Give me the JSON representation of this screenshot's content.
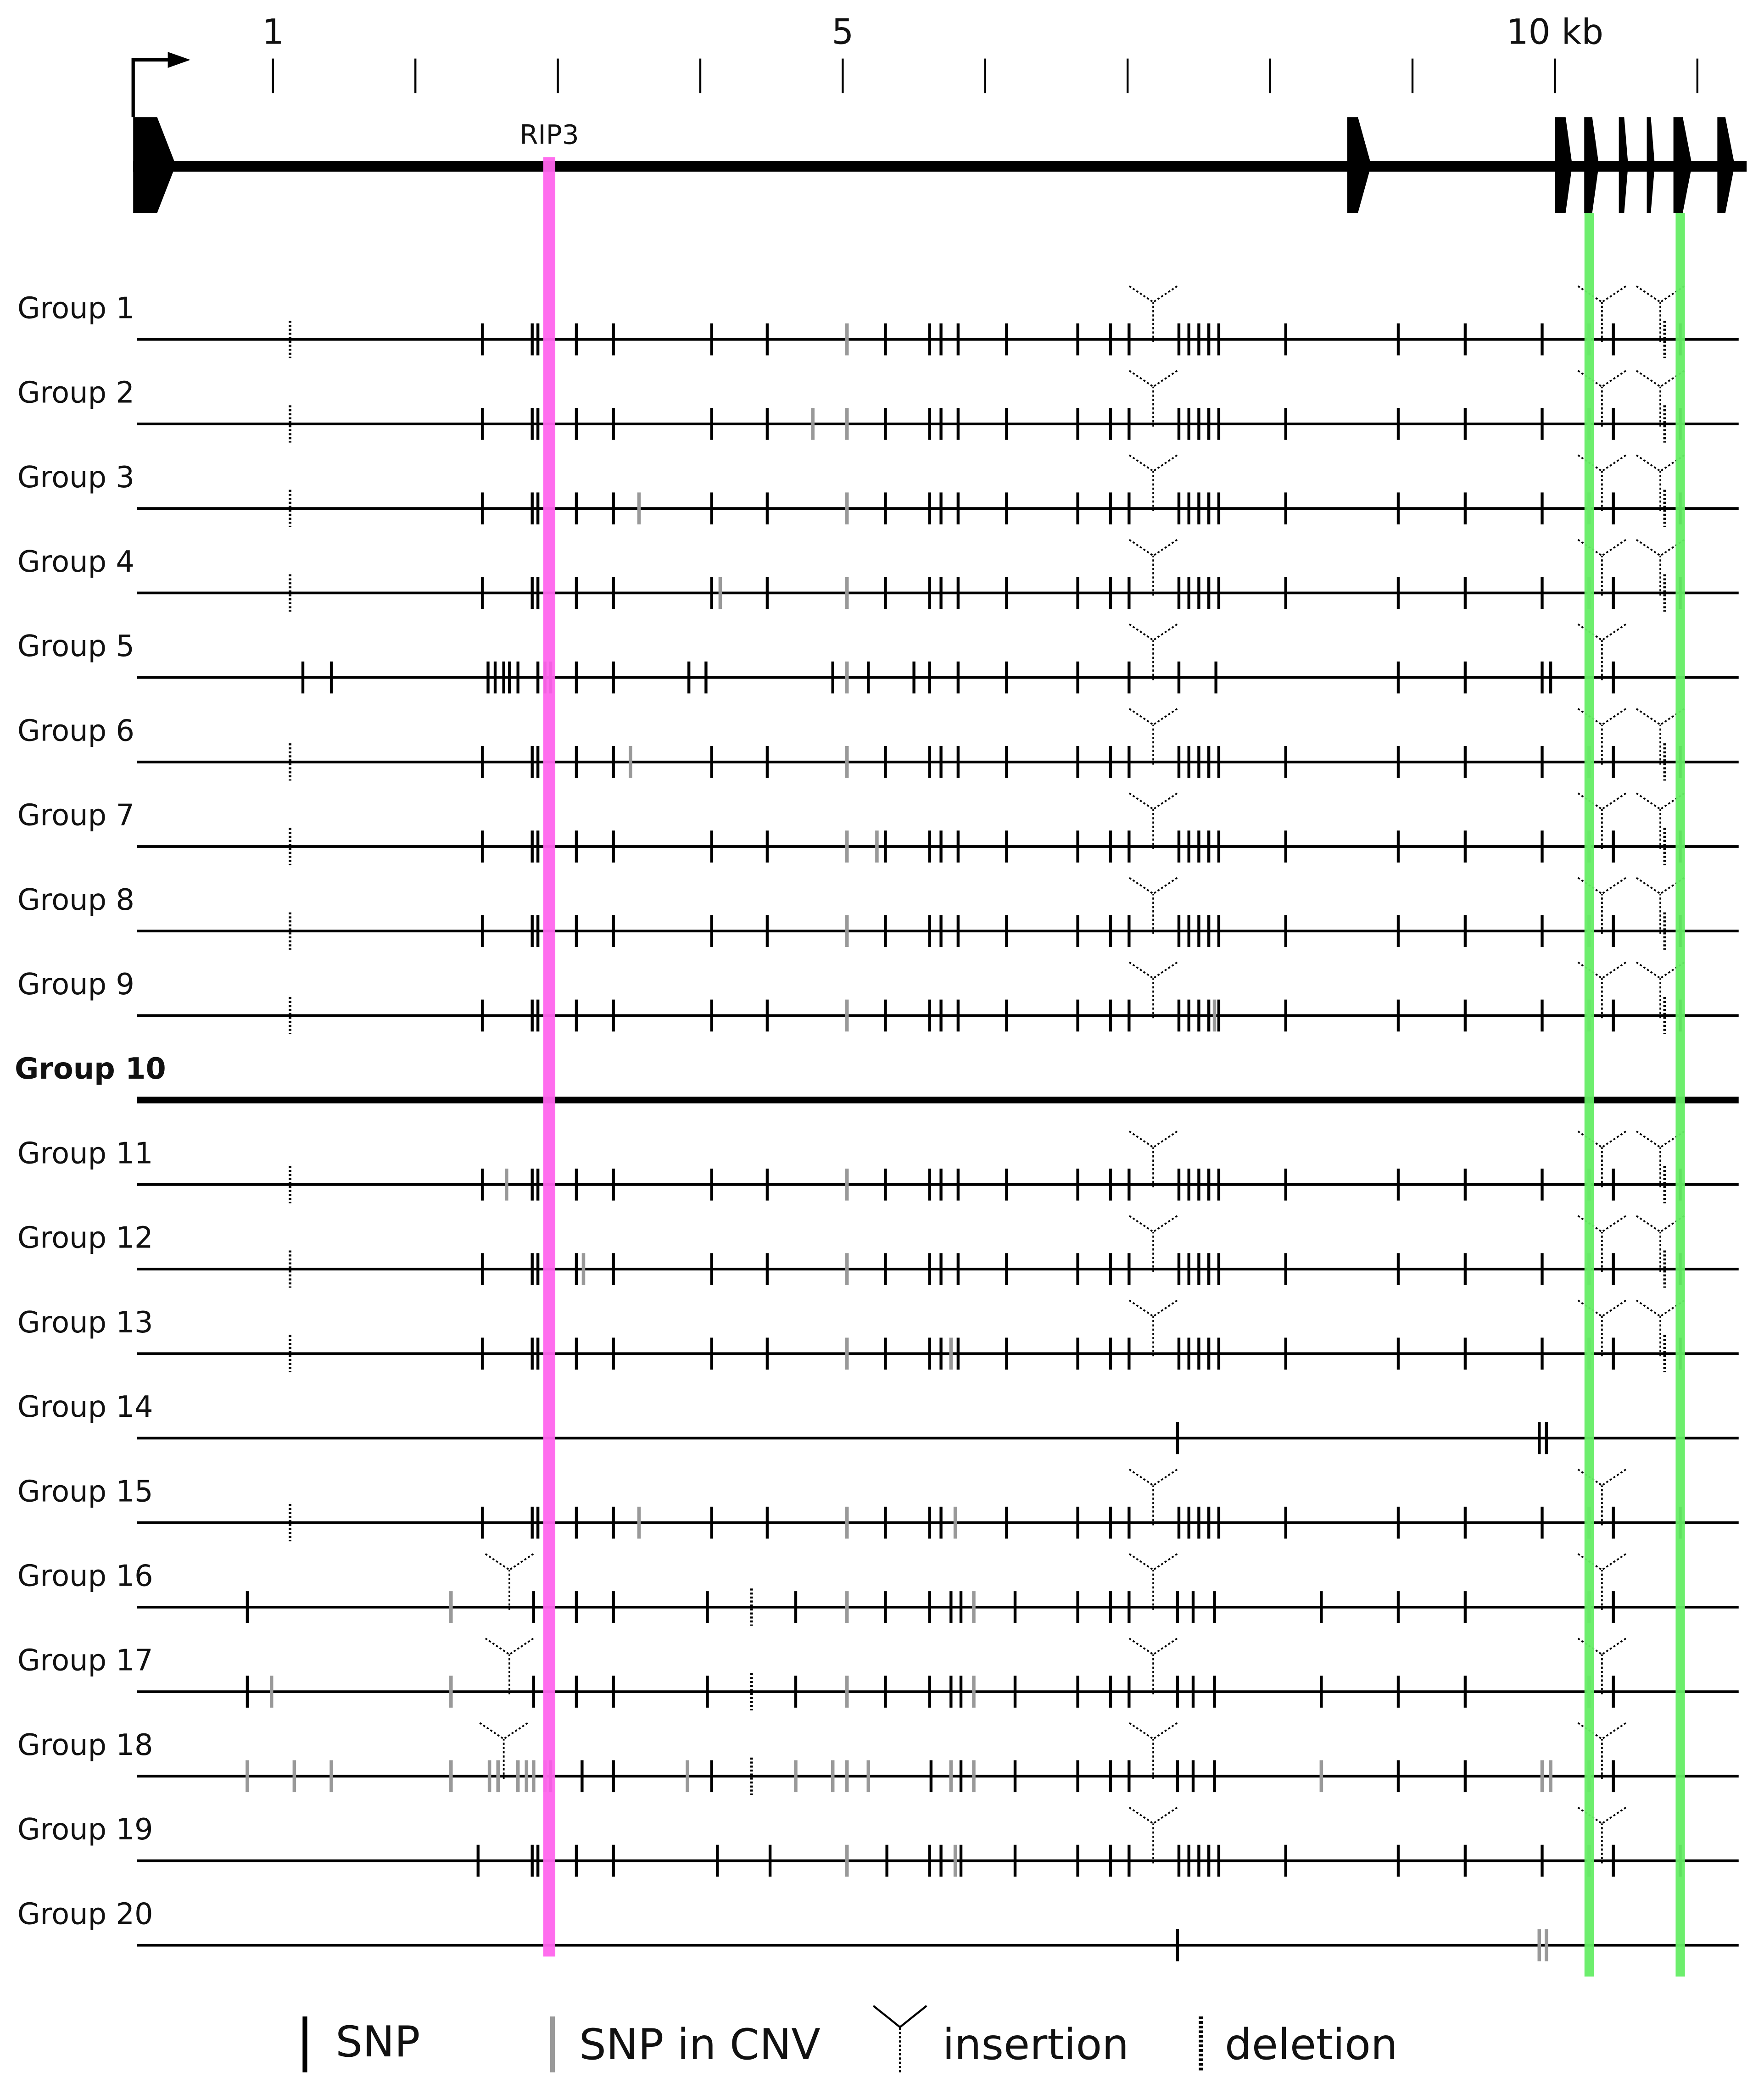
{
  "scale": {
    "xlim": [
      0,
      11.4
    ],
    "labeled_ticks": [
      1,
      5,
      {
        "value": 10,
        "label": "10 kb"
      }
    ],
    "minor_ticks": [
      2,
      3,
      4,
      6,
      7,
      8,
      9,
      11
    ]
  },
  "highlights": [
    {
      "label": "RIP3",
      "position": 2.94,
      "color": "#ff66ee"
    },
    {
      "position": 10.24,
      "color": "#66ee66"
    },
    {
      "position": 10.88,
      "color": "#66ee66"
    }
  ],
  "groups": [
    {
      "label": "Group 1",
      "snp": [
        2.47,
        2.82,
        2.86,
        3.13,
        3.39,
        4.08,
        4.47,
        5.3,
        5.61,
        5.69,
        5.81,
        6.15,
        6.65,
        6.88,
        7.01,
        7.36,
        7.43,
        7.5,
        7.57,
        7.64,
        8.11,
        8.9,
        9.37,
        9.91,
        10.41,
        10.88
      ],
      "cnv": [
        5.03,
        10.24
      ],
      "ins": [
        7.18,
        10.33,
        10.74
      ],
      "del": [
        1.12,
        10.77
      ]
    },
    {
      "label": "Group 2",
      "snp": [
        2.47,
        2.82,
        2.86,
        3.13,
        3.39,
        4.08,
        4.47,
        5.3,
        5.61,
        5.69,
        5.81,
        6.15,
        6.65,
        6.88,
        7.01,
        7.36,
        7.43,
        7.5,
        7.57,
        7.64,
        8.11,
        8.9,
        9.37,
        9.91,
        10.41,
        10.88
      ],
      "cnv": [
        4.79,
        5.03,
        10.24
      ],
      "ins": [
        7.18,
        10.33,
        10.74
      ],
      "del": [
        1.12,
        10.77
      ]
    },
    {
      "label": "Group 3",
      "snp": [
        2.47,
        2.82,
        2.86,
        3.13,
        3.39,
        4.08,
        4.47,
        5.3,
        5.61,
        5.69,
        5.81,
        6.15,
        6.65,
        6.88,
        7.01,
        7.36,
        7.43,
        7.5,
        7.57,
        7.64,
        8.11,
        8.9,
        9.37,
        9.91,
        10.41,
        10.88
      ],
      "cnv": [
        3.57,
        5.03,
        10.24
      ],
      "ins": [
        7.18,
        10.33,
        10.74
      ],
      "del": [
        1.12,
        10.77
      ]
    },
    {
      "label": "Group 4",
      "snp": [
        2.47,
        2.82,
        2.86,
        3.13,
        3.39,
        4.08,
        4.47,
        5.3,
        5.61,
        5.69,
        5.81,
        6.15,
        6.65,
        6.88,
        7.01,
        7.36,
        7.43,
        7.5,
        7.57,
        7.64,
        8.11,
        8.9,
        9.37,
        9.91,
        10.41,
        10.88
      ],
      "cnv": [
        4.14,
        5.03,
        10.24
      ],
      "ins": [
        7.18,
        10.33,
        10.74
      ],
      "del": [
        1.12,
        10.77
      ]
    },
    {
      "label": "Group 5",
      "snp": [
        1.21,
        1.41,
        2.51,
        2.56,
        2.62,
        2.66,
        2.72,
        2.86,
        2.91,
        2.95,
        3.13,
        3.39,
        3.92,
        4.04,
        4.93,
        5.18,
        5.5,
        5.61,
        5.81,
        6.15,
        6.65,
        7.01,
        7.36,
        7.62,
        8.9,
        9.37,
        9.91,
        9.97,
        10.41
      ],
      "cnv": [
        5.03
      ],
      "ins": [
        7.18,
        10.33
      ],
      "del": []
    },
    {
      "label": "Group 6",
      "snp": [
        2.47,
        2.82,
        2.86,
        3.13,
        3.39,
        4.08,
        4.47,
        5.3,
        5.61,
        5.69,
        5.81,
        6.15,
        6.65,
        6.88,
        7.01,
        7.36,
        7.43,
        7.5,
        7.57,
        7.64,
        8.11,
        8.9,
        9.37,
        9.91,
        10.41,
        10.88
      ],
      "cnv": [
        3.51,
        5.03,
        10.24
      ],
      "ins": [
        7.18,
        10.33,
        10.74
      ],
      "del": [
        1.12,
        10.77
      ]
    },
    {
      "label": "Group 7",
      "snp": [
        2.47,
        2.82,
        2.86,
        3.13,
        3.39,
        4.08,
        4.47,
        5.3,
        5.61,
        5.69,
        5.81,
        6.15,
        6.65,
        6.88,
        7.01,
        7.36,
        7.43,
        7.5,
        7.57,
        7.64,
        8.11,
        8.9,
        9.37,
        9.91,
        10.41,
        10.88
      ],
      "cnv": [
        5.03,
        5.24,
        10.24
      ],
      "ins": [
        7.18,
        10.33,
        10.74
      ],
      "del": [
        1.12,
        10.77
      ]
    },
    {
      "label": "Group 8",
      "snp": [
        2.47,
        2.82,
        2.86,
        3.13,
        3.39,
        4.08,
        4.47,
        5.3,
        5.61,
        5.69,
        5.81,
        6.15,
        6.65,
        6.88,
        7.01,
        7.36,
        7.43,
        7.5,
        7.57,
        7.64,
        8.11,
        8.9,
        9.37,
        9.91,
        10.41,
        10.88
      ],
      "cnv": [
        5.03,
        10.24
      ],
      "ins": [
        7.18,
        10.33,
        10.74
      ],
      "del": [
        1.12,
        10.77
      ]
    },
    {
      "label": "Group 9",
      "snp": [
        2.47,
        2.82,
        2.86,
        3.13,
        3.39,
        4.08,
        4.47,
        5.3,
        5.61,
        5.69,
        5.81,
        6.15,
        6.65,
        6.88,
        7.01,
        7.36,
        7.43,
        7.5,
        7.57,
        7.64,
        8.11,
        8.9,
        9.37,
        9.91,
        10.41,
        10.88
      ],
      "cnv": [
        5.03,
        7.61,
        10.24
      ],
      "ins": [
        7.18,
        10.33,
        10.74
      ],
      "del": [
        1.12,
        10.77
      ]
    },
    {
      "label": "Group 10",
      "reference": true,
      "snp": [],
      "cnv": [],
      "ins": [],
      "del": []
    },
    {
      "label": "Group 11",
      "snp": [
        2.47,
        2.82,
        2.86,
        3.13,
        3.39,
        4.08,
        4.47,
        5.3,
        5.61,
        5.69,
        5.81,
        6.15,
        6.65,
        6.88,
        7.01,
        7.36,
        7.43,
        7.5,
        7.57,
        7.64,
        8.11,
        8.9,
        9.37,
        9.91,
        10.41,
        10.88
      ],
      "cnv": [
        2.64,
        5.03,
        10.24
      ],
      "ins": [
        7.18,
        10.33,
        10.74
      ],
      "del": [
        1.12,
        10.77
      ]
    },
    {
      "label": "Group 12",
      "snp": [
        2.47,
        2.82,
        2.86,
        3.13,
        3.39,
        4.08,
        4.47,
        5.3,
        5.61,
        5.69,
        5.81,
        6.15,
        6.65,
        6.88,
        7.01,
        7.36,
        7.43,
        7.5,
        7.57,
        7.64,
        8.11,
        8.9,
        9.37,
        9.91,
        10.41,
        10.88
      ],
      "cnv": [
        3.18,
        5.03,
        10.24
      ],
      "ins": [
        7.18,
        10.33,
        10.74
      ],
      "del": [
        1.12,
        10.77
      ]
    },
    {
      "label": "Group 13",
      "snp": [
        2.47,
        2.82,
        2.86,
        3.13,
        3.39,
        4.08,
        4.47,
        5.3,
        5.61,
        5.69,
        5.81,
        6.15,
        6.65,
        6.88,
        7.01,
        7.36,
        7.43,
        7.5,
        7.57,
        7.64,
        8.11,
        8.9,
        9.37,
        9.91,
        10.41,
        10.88
      ],
      "cnv": [
        5.03,
        5.76,
        10.24
      ],
      "ins": [
        7.18,
        10.33,
        10.74
      ],
      "del": [
        1.12,
        10.77
      ]
    },
    {
      "label": "Group 14",
      "snp": [
        7.35,
        9.89,
        9.94
      ],
      "cnv": [],
      "ins": [],
      "del": []
    },
    {
      "label": "Group 15",
      "snp": [
        2.47,
        2.82,
        2.86,
        3.13,
        3.39,
        4.08,
        4.47,
        5.3,
        5.61,
        5.69,
        6.15,
        6.65,
        6.88,
        7.01,
        7.36,
        7.43,
        7.5,
        7.57,
        7.64,
        8.11,
        8.9,
        9.37,
        9.91,
        10.41,
        10.88
      ],
      "cnv": [
        3.57,
        5.03,
        5.79,
        10.24
      ],
      "ins": [
        7.18,
        10.33
      ],
      "del": [
        1.12
      ]
    },
    {
      "label": "Group 16",
      "snp": [
        0.82,
        2.83,
        3.13,
        3.39,
        4.05,
        4.67,
        5.3,
        5.61,
        5.76,
        5.83,
        6.21,
        6.65,
        6.88,
        7.01,
        7.35,
        7.46,
        7.61,
        8.36,
        8.9,
        9.37,
        10.41
      ],
      "cnv": [
        2.25,
        5.03,
        5.92,
        10.24
      ],
      "ins": [
        2.66,
        7.18,
        10.33
      ],
      "del": [
        4.36
      ]
    },
    {
      "label": "Group 17",
      "snp": [
        0.82,
        2.83,
        3.13,
        3.39,
        4.05,
        4.67,
        5.3,
        5.61,
        5.76,
        5.83,
        6.21,
        6.65,
        6.88,
        7.01,
        7.35,
        7.46,
        7.61,
        8.36,
        8.9,
        9.37,
        10.41
      ],
      "cnv": [
        0.99,
        2.25,
        5.03,
        5.92,
        10.24
      ],
      "ins": [
        2.66,
        7.18,
        10.33
      ],
      "del": [
        4.36
      ]
    },
    {
      "label": "Group 18",
      "snp": [
        2.95,
        3.17,
        3.39,
        4.08,
        5.62,
        5.83,
        6.21,
        6.65,
        6.88,
        7.01,
        7.35,
        7.46,
        7.61,
        8.9,
        9.37,
        10.41
      ],
      "cnv": [
        0.82,
        1.15,
        1.41,
        2.25,
        2.52,
        2.58,
        2.72,
        2.78,
        2.83,
        2.91,
        3.91,
        4.67,
        4.93,
        5.03,
        5.18,
        5.76,
        5.92,
        8.36,
        9.91,
        9.97,
        10.24
      ],
      "ins": [
        2.62,
        7.18,
        10.33
      ],
      "del": [
        4.36
      ]
    },
    {
      "label": "Group 19",
      "snp": [
        2.44,
        2.82,
        2.86,
        3.13,
        3.39,
        4.12,
        4.49,
        5.31,
        5.61,
        5.69,
        5.83,
        6.21,
        6.65,
        6.88,
        7.01,
        7.36,
        7.43,
        7.5,
        7.57,
        7.64,
        8.11,
        8.9,
        9.37,
        9.91,
        10.41,
        10.88
      ],
      "cnv": [
        5.03,
        5.79,
        10.24
      ],
      "ins": [
        7.18,
        10.33
      ],
      "del": []
    },
    {
      "label": "Group 20",
      "snp": [
        7.35
      ],
      "cnv": [
        9.89,
        9.94
      ],
      "ins": [],
      "del": []
    }
  ],
  "legend": {
    "snp": "SNP",
    "cnv": "SNP in CNV",
    "ins": "insertion",
    "del": "deletion"
  }
}
